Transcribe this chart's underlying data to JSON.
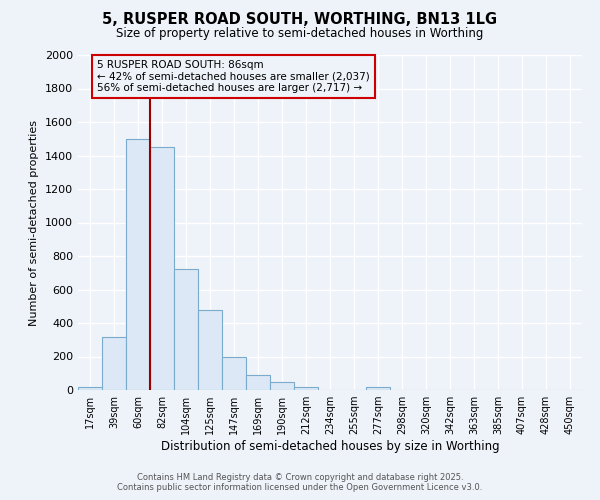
{
  "title": "5, RUSPER ROAD SOUTH, WORTHING, BN13 1LG",
  "subtitle": "Size of property relative to semi-detached houses in Worthing",
  "xlabel": "Distribution of semi-detached houses by size in Worthing",
  "ylabel": "Number of semi-detached properties",
  "bin_labels": [
    "17sqm",
    "39sqm",
    "60sqm",
    "82sqm",
    "104sqm",
    "125sqm",
    "147sqm",
    "169sqm",
    "190sqm",
    "212sqm",
    "234sqm",
    "255sqm",
    "277sqm",
    "298sqm",
    "320sqm",
    "342sqm",
    "363sqm",
    "385sqm",
    "407sqm",
    "428sqm",
    "450sqm"
  ],
  "bar_heights": [
    20,
    315,
    1500,
    1450,
    725,
    480,
    195,
    90,
    45,
    20,
    0,
    0,
    20,
    0,
    0,
    0,
    0,
    0,
    0,
    0,
    0
  ],
  "bar_color": "#dce8f5",
  "bar_edge_color": "#7aaacc",
  "subject_line_color": "#990000",
  "annotation_title": "5 RUSPER ROAD SOUTH: 86sqm",
  "annotation_line1": "← 42% of semi-detached houses are smaller (2,037)",
  "annotation_line2": "56% of semi-detached houses are larger (2,717) →",
  "annotation_box_color": "#cc0000",
  "ylim_max": 2000,
  "yticks": [
    0,
    200,
    400,
    600,
    800,
    1000,
    1200,
    1400,
    1600,
    1800,
    2000
  ],
  "background_color": "#eef2f9",
  "grid_color": "#ffffff",
  "footer_line1": "Contains HM Land Registry data © Crown copyright and database right 2025.",
  "footer_line2": "Contains public sector information licensed under the Open Government Licence v3.0."
}
